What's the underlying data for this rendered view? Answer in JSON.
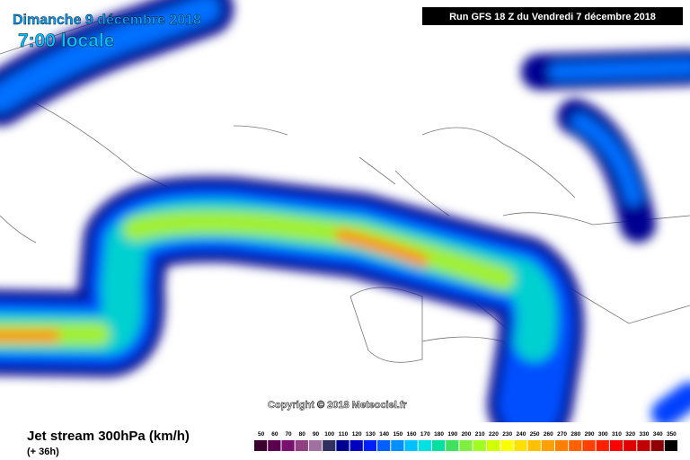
{
  "header": {
    "date": "Dimanche 9 décembre 2018",
    "time": "7:00 locale",
    "run": "Run GFS 18 Z du Vendredi 7 décembre 2018"
  },
  "copyright": "Copyright © 2018 Meteociel.fr",
  "footer": {
    "title": "Jet stream 300hPa (km/h)",
    "lead": "(+ 36h)"
  },
  "legend": {
    "values": [
      50,
      60,
      70,
      80,
      90,
      100,
      110,
      120,
      130,
      140,
      150,
      160,
      170,
      180,
      190,
      200,
      210,
      220,
      230,
      240,
      250,
      260,
      270,
      280,
      290,
      300,
      310,
      320,
      330,
      340,
      350
    ],
    "colors": [
      "#3a0030",
      "#5a0050",
      "#781070",
      "#904080",
      "#a070a0",
      "#303060",
      "#000090",
      "#0000c0",
      "#0020ff",
      "#0060ff",
      "#0090ff",
      "#00c0ff",
      "#00e0e0",
      "#00e0a0",
      "#40e060",
      "#80f040",
      "#a0ff20",
      "#d0ff00",
      "#ffff00",
      "#ffe000",
      "#ffc000",
      "#ffa000",
      "#ff8000",
      "#ff6000",
      "#ff4000",
      "#ff2000",
      "#ff0000",
      "#e00000",
      "#c00000",
      "#900000",
      "#000000"
    ]
  }
}
